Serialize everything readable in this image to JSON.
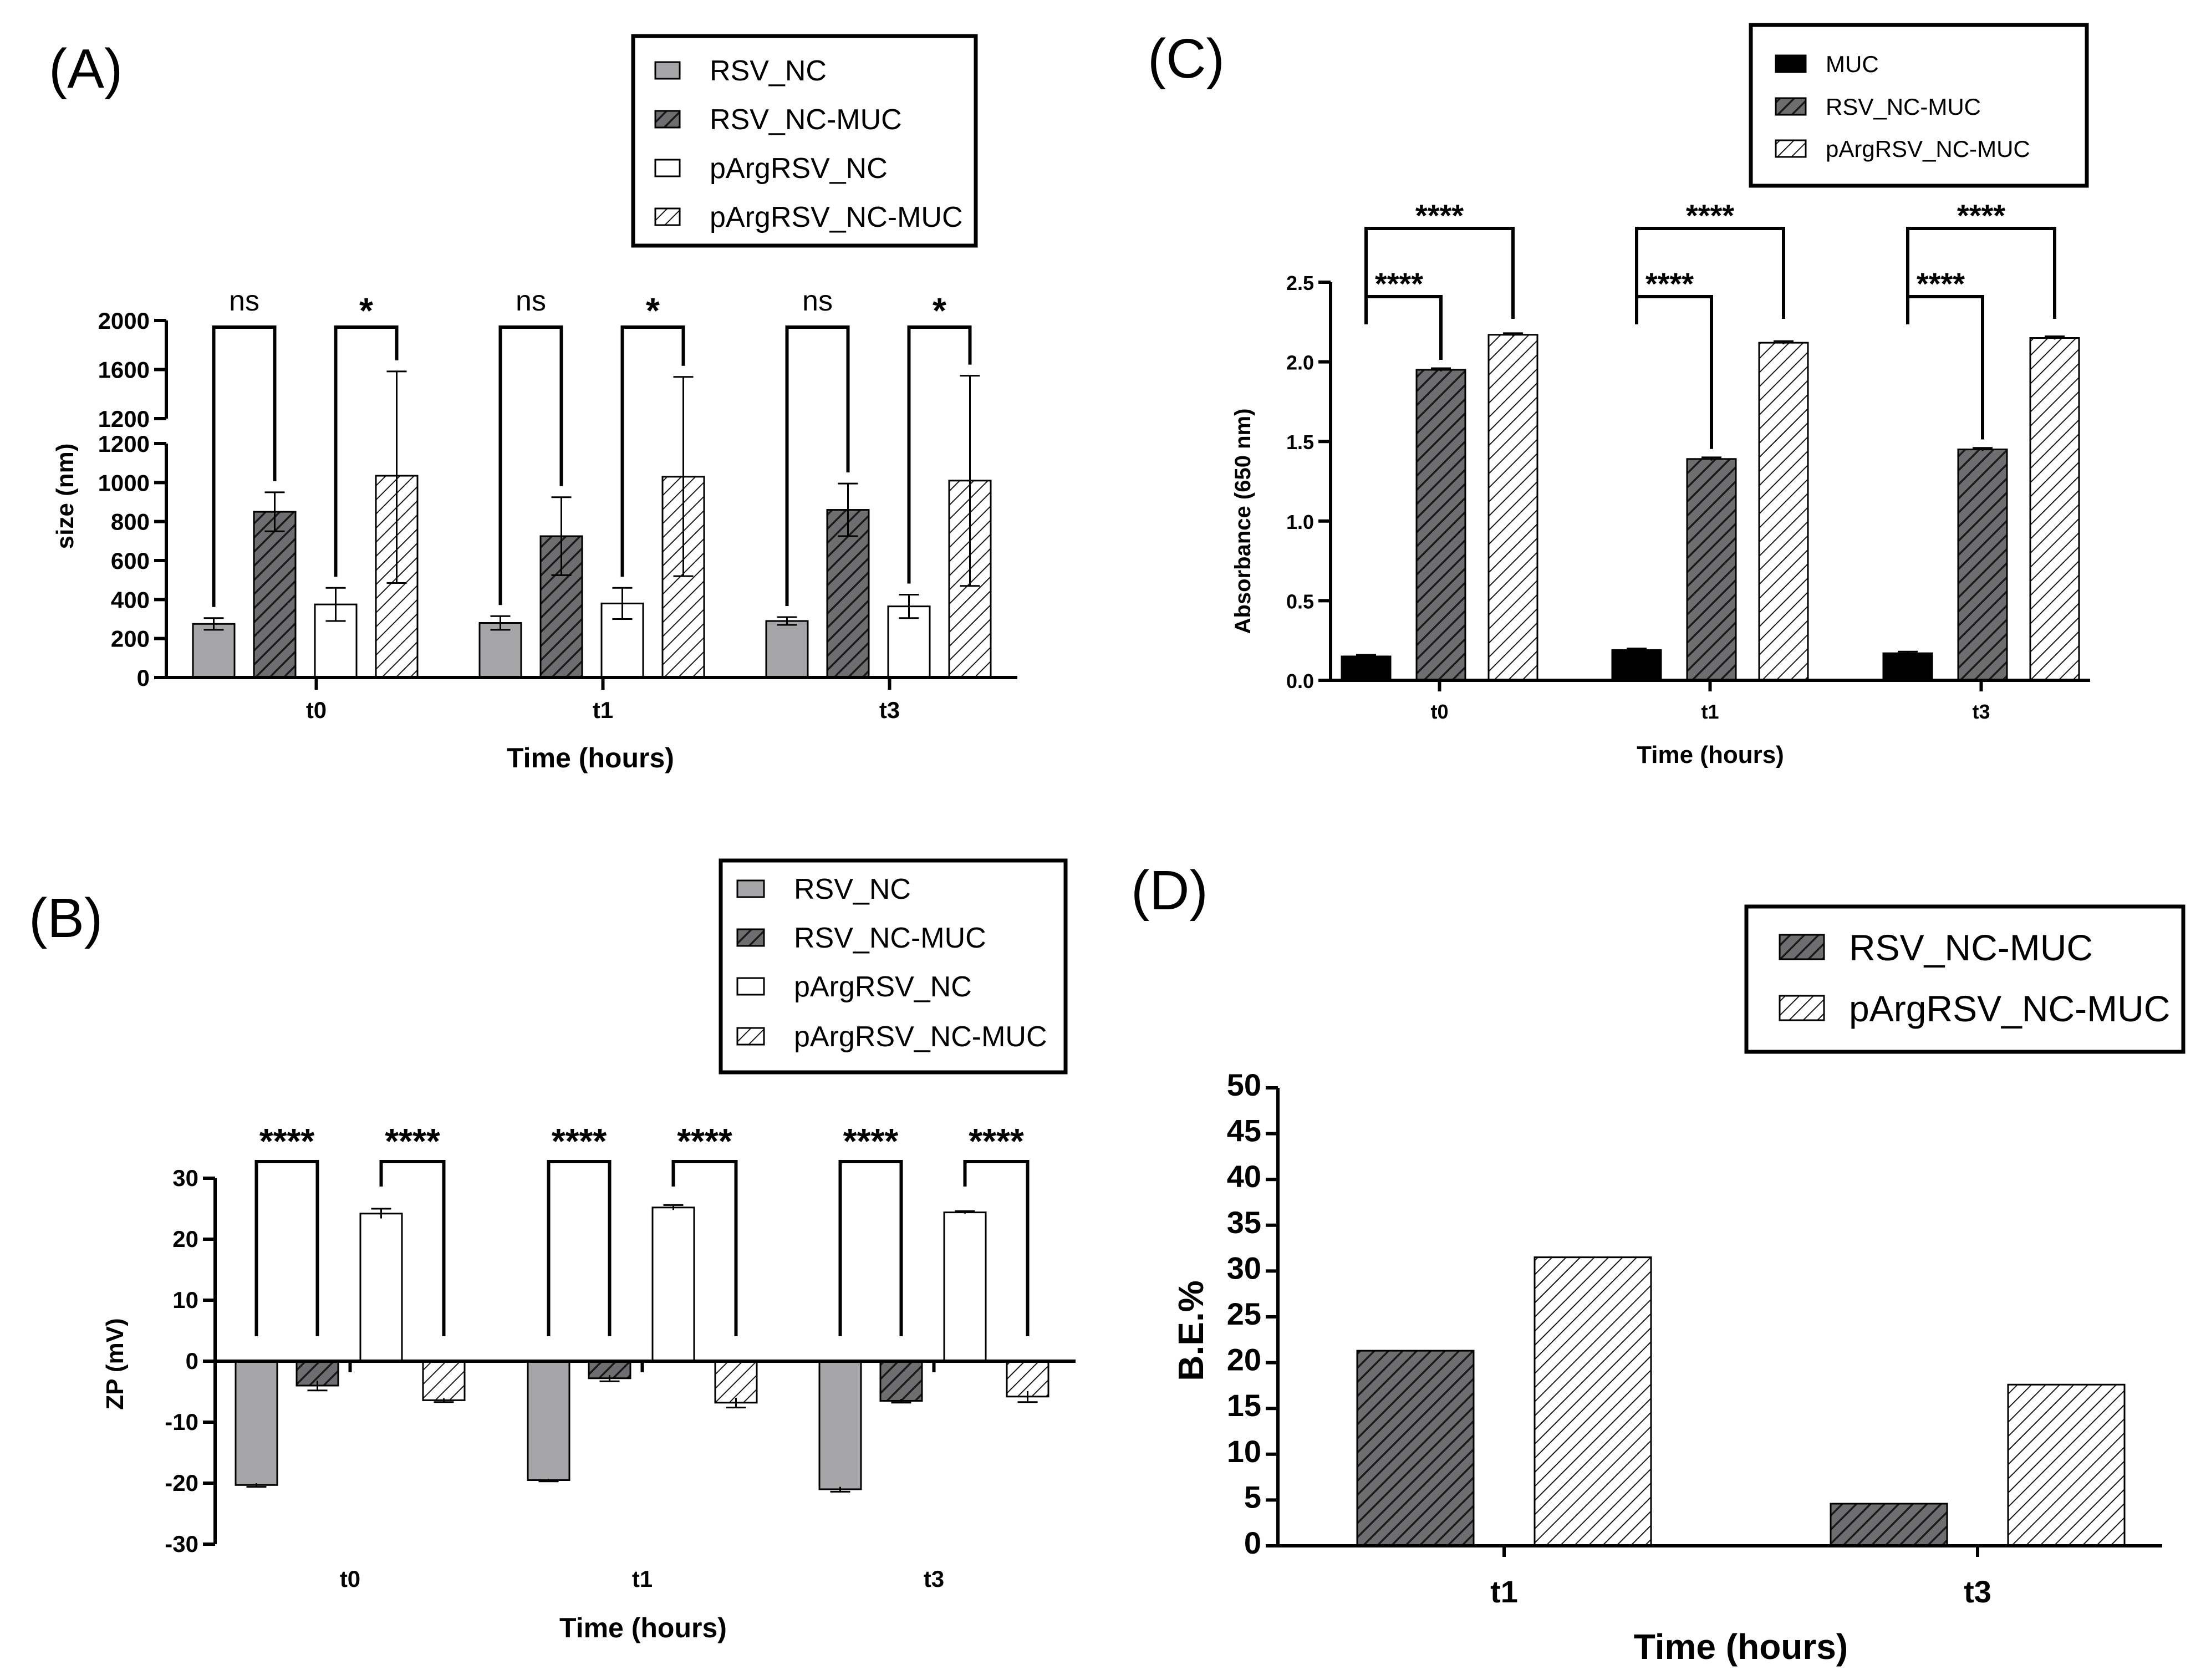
{
  "panels": {
    "A": {
      "letter": "(A)"
    },
    "B": {
      "letter": "(B)"
    },
    "C": {
      "letter": "(C)"
    },
    "D": {
      "letter": "(D)"
    }
  },
  "styles": {
    "RSV_NC": {
      "fill": "#a6a6a8",
      "pattern": "solid"
    },
    "RSV_NC-MUC": {
      "fill": "#6e6e70",
      "pattern": "hatch"
    },
    "pArgRSV_NC": {
      "fill": "#ffffff",
      "pattern": "solid"
    },
    "pArgRSV_NC-MUC": {
      "fill": "#ffffff",
      "pattern": "hatch"
    },
    "MUC": {
      "fill": "#000000",
      "pattern": "solid"
    }
  },
  "chart_data": [
    {
      "id": "A",
      "type": "bar",
      "title": "",
      "xlabel": "Time (hours)",
      "ylabel": "size (nm)",
      "categories": [
        "t0",
        "t1",
        "t3"
      ],
      "ylim": [
        0,
        2000
      ],
      "y_break": [
        1200,
        1200
      ],
      "yticks": [
        "0",
        "200",
        "400",
        "600",
        "800",
        "1000",
        "1200",
        "1200",
        "1600",
        "2000"
      ],
      "series": [
        {
          "name": "RSV_NC",
          "values": [
            275,
            280,
            290
          ],
          "errors": [
            30,
            35,
            20
          ]
        },
        {
          "name": "RSV_NC-MUC",
          "values": [
            850,
            725,
            860
          ],
          "errors": [
            100,
            200,
            135
          ]
        },
        {
          "name": "pArgRSV_NC",
          "values": [
            375,
            380,
            365
          ],
          "errors": [
            85,
            80,
            60
          ]
        },
        {
          "name": "pArgRSV_NC-MUC",
          "values": [
            1035,
            1030,
            1010
          ],
          "errors": [
            550,
            510,
            540
          ]
        }
      ],
      "significance": [
        {
          "group": 0,
          "pair": [
            0,
            1
          ],
          "label": "ns"
        },
        {
          "group": 0,
          "pair": [
            2,
            3
          ],
          "label": "*"
        },
        {
          "group": 1,
          "pair": [
            0,
            1
          ],
          "label": "ns"
        },
        {
          "group": 1,
          "pair": [
            2,
            3
          ],
          "label": "*"
        },
        {
          "group": 2,
          "pair": [
            0,
            1
          ],
          "label": "ns"
        },
        {
          "group": 2,
          "pair": [
            2,
            3
          ],
          "label": "*"
        }
      ],
      "legend": [
        "RSV_NC",
        "RSV_NC-MUC",
        "pArgRSV_NC",
        "pArgRSV_NC-MUC"
      ]
    },
    {
      "id": "B",
      "type": "bar",
      "title": "",
      "xlabel": "Time (hours)",
      "ylabel": "ZP (mV)",
      "categories": [
        "t0",
        "t1",
        "t3"
      ],
      "ylim": [
        -30,
        30
      ],
      "yticks": [
        "-30",
        "-20",
        "-10",
        "0",
        "10",
        "20",
        "30"
      ],
      "series": [
        {
          "name": "RSV_NC",
          "values": [
            -20.3,
            -19.5,
            -21.0
          ],
          "errors": [
            0.3,
            0.2,
            0.4
          ]
        },
        {
          "name": "RSV_NC-MUC",
          "values": [
            -4.0,
            -2.8,
            -6.5
          ],
          "errors": [
            0.8,
            0.5,
            0.3
          ]
        },
        {
          "name": "pArgRSV_NC",
          "values": [
            24.2,
            25.2,
            24.4
          ],
          "errors": [
            0.8,
            0.4,
            0.2
          ]
        },
        {
          "name": "pArgRSV_NC-MUC",
          "values": [
            -6.4,
            -6.8,
            -5.8
          ],
          "errors": [
            0.3,
            0.8,
            0.9
          ]
        }
      ],
      "significance": [
        {
          "group": 0,
          "pair": [
            0,
            1
          ],
          "label": "****"
        },
        {
          "group": 0,
          "pair": [
            2,
            3
          ],
          "label": "****"
        },
        {
          "group": 1,
          "pair": [
            0,
            1
          ],
          "label": "****"
        },
        {
          "group": 1,
          "pair": [
            2,
            3
          ],
          "label": "****"
        },
        {
          "group": 2,
          "pair": [
            0,
            1
          ],
          "label": "****"
        },
        {
          "group": 2,
          "pair": [
            2,
            3
          ],
          "label": "****"
        }
      ],
      "legend": [
        "RSV_NC",
        "RSV_NC-MUC",
        "pArgRSV_NC",
        "pArgRSV_NC-MUC"
      ]
    },
    {
      "id": "C",
      "type": "bar",
      "title": "",
      "xlabel": "Time (hours)",
      "ylabel": "Absorbance (650 nm)",
      "categories": [
        "t0",
        "t1",
        "t3"
      ],
      "ylim": [
        0,
        2.5
      ],
      "yticks": [
        "0.0",
        "0.5",
        "1.0",
        "1.5",
        "2.0",
        "2.5"
      ],
      "series": [
        {
          "name": "MUC",
          "values": [
            0.15,
            0.19,
            0.17
          ],
          "errors": [
            0.01,
            0.01,
            0.01
          ]
        },
        {
          "name": "RSV_NC-MUC",
          "values": [
            1.95,
            1.39,
            1.45
          ],
          "errors": [
            0.01,
            0.01,
            0.01
          ]
        },
        {
          "name": "pArgRSV_NC-MUC",
          "values": [
            2.17,
            2.12,
            2.15
          ],
          "errors": [
            0.01,
            0.01,
            0.01
          ]
        }
      ],
      "significance": [
        {
          "group": 0,
          "pair": [
            0,
            1
          ],
          "label": "****"
        },
        {
          "group": 0,
          "pair": [
            0,
            2
          ],
          "label": "****"
        },
        {
          "group": 1,
          "pair": [
            0,
            1
          ],
          "label": "****"
        },
        {
          "group": 1,
          "pair": [
            0,
            2
          ],
          "label": "****"
        },
        {
          "group": 2,
          "pair": [
            0,
            1
          ],
          "label": "****"
        },
        {
          "group": 2,
          "pair": [
            0,
            2
          ],
          "label": "****"
        }
      ],
      "legend": [
        "MUC",
        "RSV_NC-MUC",
        "pArgRSV_NC-MUC"
      ]
    },
    {
      "id": "D",
      "type": "bar",
      "title": "",
      "xlabel": "Time (hours)",
      "ylabel": "B.E.%",
      "categories": [
        "t1",
        "t3"
      ],
      "ylim": [
        0,
        50
      ],
      "yticks": [
        "0",
        "5",
        "10",
        "15",
        "20",
        "25",
        "30",
        "35",
        "40",
        "45",
        "50"
      ],
      "series": [
        {
          "name": "RSV_NC-MUC",
          "values": [
            21.3,
            4.6
          ]
        },
        {
          "name": "pArgRSV_NC-MUC",
          "values": [
            31.5,
            17.6
          ]
        }
      ],
      "legend": [
        "RSV_NC-MUC",
        "pArgRSV_NC-MUC"
      ]
    }
  ]
}
